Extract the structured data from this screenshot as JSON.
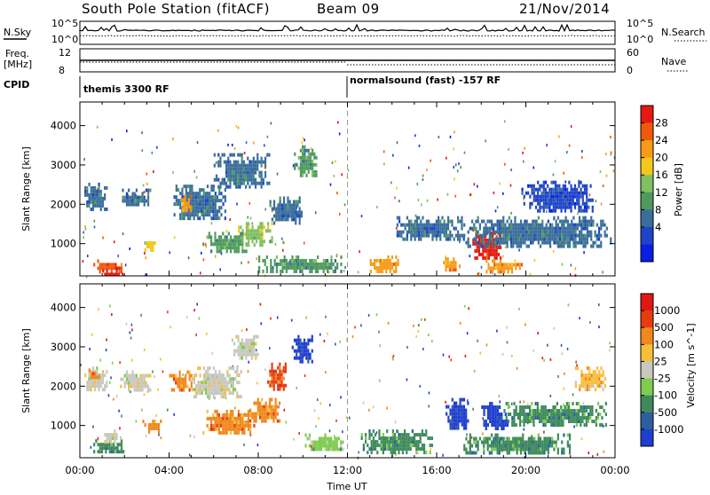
{
  "header": {
    "station": "South Pole Station (fitACF)",
    "beam": "Beam 09",
    "date": "21/Nov/2014"
  },
  "status_panels": {
    "nsky_label": "N.Sky",
    "nsky_ticks": [
      "10^5",
      "10^0"
    ],
    "nsearch_label": "N.Search",
    "nsearch_ticks": [
      "10^5",
      "10^0"
    ],
    "freq_label_1": "Freq.",
    "freq_label_2": "[MHz]",
    "freq_ticks": [
      "12",
      "8"
    ],
    "nave_label": "Nave",
    "nave_ticks": [
      "60",
      "0"
    ],
    "cpid_label": "CPID",
    "cpid_segments": [
      {
        "label": "themis 3300 RF",
        "start_hour": 0
      },
      {
        "label": "normalsound (fast) -157 RF",
        "start_hour": 12
      }
    ]
  },
  "chart_data": [
    {
      "type": "heatmap",
      "name": "power",
      "xlabel": "",
      "ylabel": "Slant Range [km]",
      "xlim": [
        0,
        24
      ],
      "ylim": [
        180,
        4600
      ],
      "yticks": [
        "1000",
        "2000",
        "3000",
        "4000"
      ],
      "colorbar_label": "Power [dB]",
      "colorbar_ticks": [
        "28",
        "24",
        "20",
        "16",
        "12",
        "8",
        "4"
      ],
      "colorbar_colors": [
        "#0a1ee8",
        "#1f44c8",
        "#3a6e9a",
        "#4e9a5e",
        "#7fc060",
        "#f2c81c",
        "#f79a18",
        "#f0580c",
        "#e41a10"
      ],
      "vertical_marker_hour": 12,
      "regions": [
        {
          "t0": 0.2,
          "t1": 1.2,
          "r0": 1850,
          "r1": 2550,
          "level": 2
        },
        {
          "t0": 0.6,
          "t1": 1.9,
          "r0": 300,
          "r1": 600,
          "level": 7
        },
        {
          "t0": 1.0,
          "t1": 2.0,
          "r0": 180,
          "r1": 350,
          "level": 8
        },
        {
          "t0": 2.8,
          "t1": 3.4,
          "r0": 850,
          "r1": 1150,
          "level": 5
        },
        {
          "t0": 1.8,
          "t1": 3.2,
          "r0": 1950,
          "r1": 2400,
          "level": 2
        },
        {
          "t0": 4.2,
          "t1": 6.5,
          "r0": 1600,
          "r1": 2500,
          "level": 2
        },
        {
          "t0": 4.5,
          "t1": 5.0,
          "r0": 1850,
          "r1": 2250,
          "level": 6
        },
        {
          "t0": 5.5,
          "t1": 7.5,
          "r0": 800,
          "r1": 1300,
          "level": 3
        },
        {
          "t0": 6.0,
          "t1": 8.5,
          "r0": 2400,
          "r1": 3300,
          "level": 2
        },
        {
          "t0": 7.0,
          "t1": 8.6,
          "r0": 1000,
          "r1": 1550,
          "level": 4
        },
        {
          "t0": 8.5,
          "t1": 10.0,
          "r0": 1500,
          "r1": 2200,
          "level": 2
        },
        {
          "t0": 9.6,
          "t1": 10.6,
          "r0": 2700,
          "r1": 3500,
          "level": 3
        },
        {
          "t0": 8.0,
          "t1": 11.8,
          "r0": 300,
          "r1": 700,
          "level": 3
        },
        {
          "t0": 13.0,
          "t1": 14.3,
          "r0": 300,
          "r1": 700,
          "level": 6
        },
        {
          "t0": 14.2,
          "t1": 17.2,
          "r0": 1100,
          "r1": 1700,
          "level": 2
        },
        {
          "t0": 16.2,
          "t1": 17.0,
          "r0": 300,
          "r1": 650,
          "level": 6
        },
        {
          "t0": 17.6,
          "t1": 18.9,
          "r0": 600,
          "r1": 1400,
          "level": 8
        },
        {
          "t0": 18.2,
          "t1": 19.8,
          "r0": 300,
          "r1": 600,
          "level": 6
        },
        {
          "t0": 17.2,
          "t1": 23.8,
          "r0": 900,
          "r1": 1700,
          "level": 2
        },
        {
          "t0": 19.8,
          "t1": 23.0,
          "r0": 1800,
          "r1": 2600,
          "level": 1
        }
      ]
    },
    {
      "type": "heatmap",
      "name": "velocity",
      "xlabel": "Time UT",
      "ylabel": "Slant Range [km]",
      "xlim": [
        0,
        24
      ],
      "ylim": [
        180,
        4600
      ],
      "xticks": [
        "00:00",
        "04:00",
        "08:00",
        "12:00",
        "16:00",
        "20:00",
        "00:00"
      ],
      "yticks": [
        "1000",
        "2000",
        "3000",
        "4000"
      ],
      "colorbar_label": "Velocity [m s^-1]",
      "colorbar_ticks": [
        "1000",
        "500",
        "100",
        "25",
        "-25",
        "-100",
        "-500",
        "-1000"
      ],
      "colorbar_colors": [
        "#1e3ed0",
        "#2d5f9f",
        "#3e8a5c",
        "#7fcc50",
        "#c8c8c0",
        "#f6bf3a",
        "#f0881e",
        "#e83a10",
        "#e01812"
      ],
      "vertical_marker_hour": 12,
      "regions": [
        {
          "t0": 0.2,
          "t1": 1.2,
          "r0": 1900,
          "r1": 2500,
          "level": 4
        },
        {
          "t0": 0.3,
          "t1": 0.9,
          "r0": 2200,
          "r1": 2450,
          "level": 6
        },
        {
          "t0": 0.6,
          "t1": 2.0,
          "r0": 300,
          "r1": 650,
          "level": 2
        },
        {
          "t0": 1.0,
          "t1": 1.8,
          "r0": 600,
          "r1": 900,
          "level": 4
        },
        {
          "t0": 1.8,
          "t1": 3.2,
          "r0": 1900,
          "r1": 2400,
          "level": 4
        },
        {
          "t0": 2.8,
          "t1": 3.6,
          "r0": 850,
          "r1": 1150,
          "level": 6
        },
        {
          "t0": 4.0,
          "t1": 5.0,
          "r0": 1900,
          "r1": 2400,
          "level": 6
        },
        {
          "t0": 5.0,
          "t1": 7.2,
          "r0": 1700,
          "r1": 2500,
          "level": 4
        },
        {
          "t0": 5.5,
          "t1": 7.8,
          "r0": 800,
          "r1": 1400,
          "level": 6
        },
        {
          "t0": 6.8,
          "t1": 8.0,
          "r0": 2700,
          "r1": 3300,
          "level": 4
        },
        {
          "t0": 7.6,
          "t1": 9.0,
          "r0": 1100,
          "r1": 1700,
          "level": 6
        },
        {
          "t0": 9.5,
          "t1": 10.4,
          "r0": 2600,
          "r1": 3300,
          "level": 0
        },
        {
          "t0": 8.4,
          "t1": 9.2,
          "r0": 1900,
          "r1": 2600,
          "level": 7
        },
        {
          "t0": 10.0,
          "t1": 11.8,
          "r0": 350,
          "r1": 800,
          "level": 3
        },
        {
          "t0": 12.6,
          "t1": 15.8,
          "r0": 300,
          "r1": 900,
          "level": 2
        },
        {
          "t0": 16.4,
          "t1": 17.4,
          "r0": 900,
          "r1": 1700,
          "level": 0
        },
        {
          "t0": 17.2,
          "t1": 22.0,
          "r0": 300,
          "r1": 800,
          "level": 2
        },
        {
          "t0": 18.0,
          "t1": 19.2,
          "r0": 900,
          "r1": 1600,
          "level": 0
        },
        {
          "t0": 19.0,
          "t1": 23.6,
          "r0": 1000,
          "r1": 1600,
          "level": 2
        },
        {
          "t0": 22.2,
          "t1": 23.6,
          "r0": 1900,
          "r1": 2500,
          "level": 5
        }
      ]
    }
  ]
}
